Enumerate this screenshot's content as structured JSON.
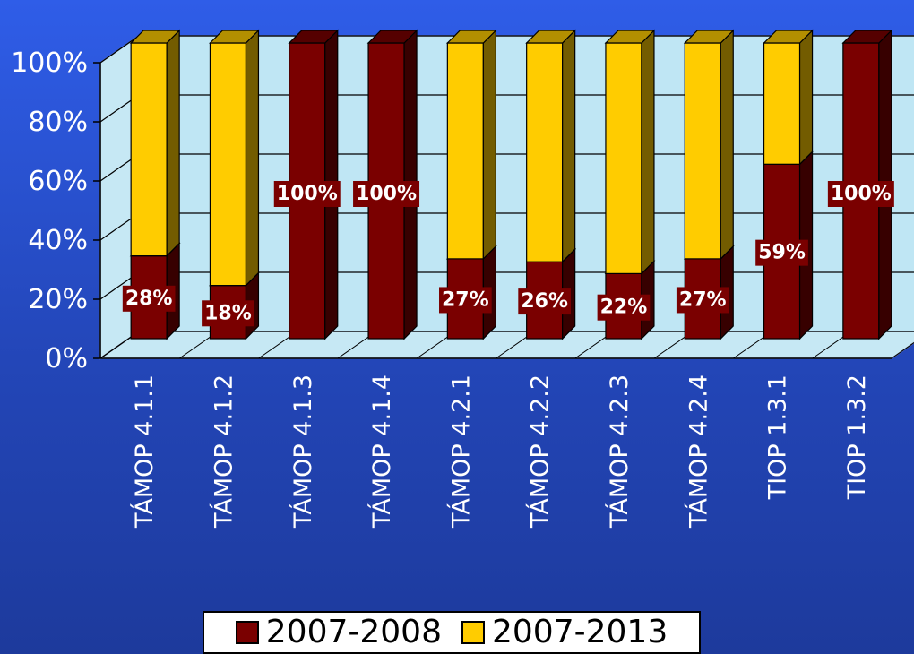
{
  "chart_data": {
    "type": "bar",
    "stacked": true,
    "percent_stacked": true,
    "three_d": true,
    "title": "",
    "xlabel": "",
    "ylabel": "",
    "ylim": [
      0,
      100
    ],
    "y_ticks": [
      "0%",
      "20%",
      "40%",
      "60%",
      "80%",
      "100%"
    ],
    "grid": true,
    "legend_position": "bottom",
    "categories": [
      "TÁMOP 4.1.1",
      "TÁMOP 4.1.2",
      "TÁMOP 4.1.3",
      "TÁMOP 4.1.4",
      "TÁMOP 4.2.1",
      "TÁMOP 4.2.2",
      "TÁMOP 4.2.3",
      "TÁMOP 4.2.4",
      "TIOP 1.3.1",
      "TIOP 1.3.2"
    ],
    "series": [
      {
        "name": "2007-2008",
        "color": "#7a0000",
        "values": [
          28,
          18,
          100,
          100,
          27,
          26,
          22,
          27,
          59,
          100
        ]
      },
      {
        "name": "2007-2013",
        "color": "#ffcc00",
        "values": [
          72,
          82,
          0,
          0,
          73,
          74,
          78,
          73,
          41,
          0
        ]
      }
    ],
    "data_labels": [
      "28%",
      "18%",
      "100%",
      "100%",
      "27%",
      "26%",
      "22%",
      "27%",
      "59%",
      "100%"
    ]
  },
  "legend": {
    "items": [
      {
        "label": "2007-2008",
        "color": "#7a0000"
      },
      {
        "label": "2007-2013",
        "color": "#ffcc00"
      }
    ]
  }
}
